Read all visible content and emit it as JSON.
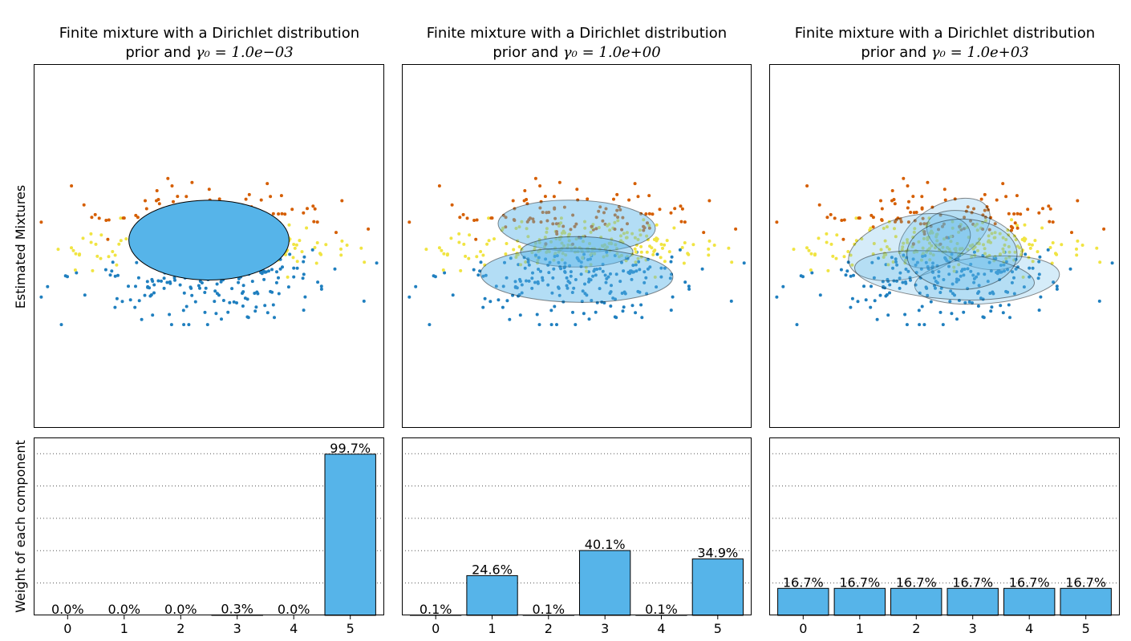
{
  "figure": {
    "ylabel_top": "Estimated Mixtures",
    "ylabel_bottom": "Weight of each component"
  },
  "colors": {
    "point_palette": [
      "#1f7fbf",
      "#f0e442",
      "#d55e00"
    ],
    "ellipse": "#56b4e9",
    "bar": "#56b4e9",
    "grid": "#555555"
  },
  "chart_data": [
    {
      "type": "scatter",
      "panel": 0,
      "title_line1": "Finite mixture with a Dirichlet distribution",
      "title_line2_prefix": "prior and ",
      "title_math": "γ₀ = 1.0e−03",
      "ellipses": [
        {
          "cx": 0.0,
          "cy": 0.0,
          "rx": 3.2,
          "ry": 1.7,
          "angle": 0,
          "alpha": 1.0
        }
      ]
    },
    {
      "type": "scatter",
      "panel": 1,
      "title_line1": "Finite mixture with a Dirichlet distribution",
      "title_line2_prefix": "prior and ",
      "title_math": "γ₀ = 1.0e+00",
      "ellipses": [
        {
          "cx": 7.2,
          "cy": 0.6,
          "rx": 3.15,
          "ry": 1.1,
          "angle": -2,
          "alpha": 0.45
        },
        {
          "cx": 7.2,
          "cy": -0.5,
          "rx": 2.25,
          "ry": 0.65,
          "angle": 0,
          "alpha": 0.45
        },
        {
          "cx": 7.2,
          "cy": -1.5,
          "rx": 3.85,
          "ry": 1.15,
          "angle": -1,
          "alpha": 0.45
        }
      ]
    },
    {
      "type": "scatter",
      "panel": 2,
      "title_line1": "Finite mixture with a Dirichlet distribution",
      "title_line2_prefix": "prior and ",
      "title_math": "γ₀ = 1.0e+03",
      "ellipses": [
        {
          "cx": 14.0,
          "cy": 0.3,
          "rx": 2.0,
          "ry": 1.2,
          "angle": 30,
          "alpha": 0.25
        },
        {
          "cx": 15.2,
          "cy": 0.0,
          "rx": 2.0,
          "ry": 1.1,
          "angle": -20,
          "alpha": 0.25
        },
        {
          "cx": 12.6,
          "cy": -0.3,
          "rx": 2.5,
          "ry": 1.3,
          "angle": 15,
          "alpha": 0.25
        },
        {
          "cx": 15.7,
          "cy": -1.7,
          "rx": 2.9,
          "ry": 1.0,
          "angle": 5,
          "alpha": 0.25
        },
        {
          "cx": 14.0,
          "cy": -1.5,
          "rx": 3.6,
          "ry": 1.0,
          "angle": -5,
          "alpha": 0.25
        },
        {
          "cx": 14.7,
          "cy": -0.6,
          "rx": 2.2,
          "ry": 1.5,
          "angle": 0,
          "alpha": 0.25
        }
      ]
    },
    {
      "type": "bar",
      "panel": 0,
      "categories": [
        "0",
        "1",
        "2",
        "3",
        "4",
        "5"
      ],
      "values": [
        0.0,
        0.0,
        0.0,
        0.3,
        0.0,
        99.7
      ],
      "labels": [
        "0.0%",
        "0.0%",
        "0.0%",
        "0.3%",
        "0.0%",
        "99.7%"
      ],
      "ylim": [
        0,
        110
      ],
      "grid_y": [
        20,
        40,
        60,
        80,
        100
      ]
    },
    {
      "type": "bar",
      "panel": 1,
      "categories": [
        "0",
        "1",
        "2",
        "3",
        "4",
        "5"
      ],
      "values": [
        0.1,
        24.6,
        0.1,
        40.1,
        0.1,
        34.9
      ],
      "labels": [
        "0.1%",
        "24.6%",
        "0.1%",
        "40.1%",
        "0.1%",
        "34.9%"
      ],
      "ylim": [
        0,
        110
      ],
      "grid_y": [
        20,
        40,
        60,
        80,
        100
      ]
    },
    {
      "type": "bar",
      "panel": 2,
      "categories": [
        "0",
        "1",
        "2",
        "3",
        "4",
        "5"
      ],
      "values": [
        16.7,
        16.7,
        16.7,
        16.7,
        16.7,
        16.7
      ],
      "labels": [
        "16.7%",
        "16.7%",
        "16.7%",
        "16.7%",
        "16.7%",
        "16.7%"
      ],
      "ylim": [
        0,
        110
      ],
      "grid_y": [
        20,
        40,
        60,
        80,
        100
      ]
    }
  ]
}
